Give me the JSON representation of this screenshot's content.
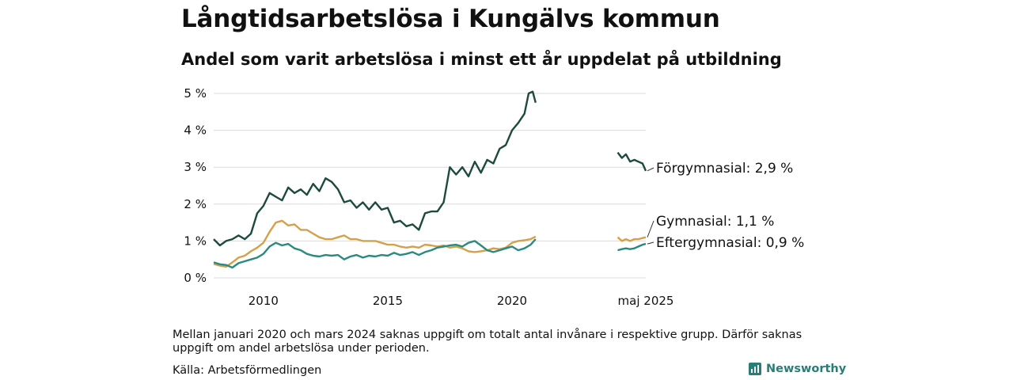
{
  "header": {
    "title": "Långtidsarbetslösa i Kungälvs kommun",
    "subtitle": "Andel som varit arbetslösa i minst ett år uppdelat på utbildning"
  },
  "footer": {
    "note": "Mellan januari 2020 och mars 2024 saknas uppgift om totalt antal invånare i respektive grupp. Därför saknas uppgift om andel arbetslösa under perioden.",
    "source": "Källa: Arbetsförmedlingen",
    "logo_text": "Newsworthy"
  },
  "chart_data": {
    "type": "line",
    "title": "Långtidsarbetslösa i Kungälvs kommun",
    "subtitle": "Andel som varit arbetslösa i minst ett år uppdelat på utbildning",
    "y_ticks": [
      0,
      1,
      2,
      3,
      4,
      5
    ],
    "y_tick_labels": [
      "0 %",
      "1 %",
      "2 %",
      "3 %",
      "4 %",
      "5 %"
    ],
    "ylim": [
      0,
      5
    ],
    "x_ticks": [
      2010,
      2015,
      2020
    ],
    "x_tick_labels": [
      "2010",
      "2015",
      "2020"
    ],
    "x_end_label": "maj 2025",
    "grid": "horizontal",
    "series": [
      {
        "name": "Förgymnasial",
        "end_label": "Förgymnasial: 2,9 %",
        "color": "#1d4a3f",
        "segments": [
          {
            "x": [
              2008.0,
              2008.25,
              2008.5,
              2008.75,
              2009.0,
              2009.25,
              2009.5,
              2009.75,
              2010.0,
              2010.25,
              2010.5,
              2010.75,
              2011.0,
              2011.25,
              2011.5,
              2011.75,
              2012.0,
              2012.25,
              2012.5,
              2012.75,
              2013.0,
              2013.25,
              2013.5,
              2013.75,
              2014.0,
              2014.25,
              2014.5,
              2014.75,
              2015.0,
              2015.25,
              2015.5,
              2015.75,
              2016.0,
              2016.25,
              2016.5,
              2016.75,
              2017.0,
              2017.25,
              2017.5,
              2017.75,
              2018.0,
              2018.25,
              2018.5,
              2018.75,
              2019.0,
              2019.25,
              2019.5,
              2019.75,
              2020.0,
              2020.25,
              2020.5,
              2020.67,
              2020.83,
              2020.95
            ],
            "y": [
              1.05,
              0.88,
              1.0,
              1.05,
              1.15,
              1.05,
              1.2,
              1.75,
              1.95,
              2.3,
              2.2,
              2.1,
              2.45,
              2.3,
              2.4,
              2.25,
              2.55,
              2.35,
              2.7,
              2.6,
              2.4,
              2.05,
              2.1,
              1.9,
              2.05,
              1.85,
              2.05,
              1.85,
              1.9,
              1.5,
              1.55,
              1.4,
              1.45,
              1.3,
              1.75,
              1.8,
              1.8,
              2.05,
              3.0,
              2.8,
              3.0,
              2.75,
              3.15,
              2.85,
              3.2,
              3.1,
              3.5,
              3.6,
              4.0,
              4.2,
              4.45,
              5.0,
              5.05,
              4.75
            ]
          },
          {
            "x": [
              2024.25,
              2024.42,
              2024.58,
              2024.75,
              2024.92,
              2025.08,
              2025.25,
              2025.38
            ],
            "y": [
              3.4,
              3.25,
              3.35,
              3.15,
              3.2,
              3.15,
              3.1,
              2.9
            ]
          }
        ]
      },
      {
        "name": "Gymnasial",
        "end_label": "Gymnasial: 1,1 %",
        "color": "#d4a04a",
        "segments": [
          {
            "x": [
              2008.0,
              2008.25,
              2008.5,
              2008.75,
              2009.0,
              2009.25,
              2009.5,
              2009.75,
              2010.0,
              2010.25,
              2010.5,
              2010.75,
              2011.0,
              2011.25,
              2011.5,
              2011.75,
              2012.0,
              2012.25,
              2012.5,
              2012.75,
              2013.0,
              2013.25,
              2013.5,
              2013.75,
              2014.0,
              2014.25,
              2014.5,
              2014.75,
              2015.0,
              2015.25,
              2015.5,
              2015.75,
              2016.0,
              2016.25,
              2016.5,
              2016.75,
              2017.0,
              2017.25,
              2017.5,
              2017.75,
              2018.0,
              2018.25,
              2018.5,
              2018.75,
              2019.0,
              2019.25,
              2019.5,
              2019.75,
              2020.0,
              2020.25,
              2020.5,
              2020.75,
              2020.95
            ],
            "y": [
              0.38,
              0.33,
              0.3,
              0.42,
              0.55,
              0.6,
              0.72,
              0.82,
              0.95,
              1.25,
              1.5,
              1.55,
              1.42,
              1.45,
              1.3,
              1.3,
              1.2,
              1.1,
              1.05,
              1.05,
              1.1,
              1.15,
              1.05,
              1.05,
              1.0,
              1.0,
              1.0,
              0.95,
              0.9,
              0.9,
              0.85,
              0.82,
              0.85,
              0.82,
              0.9,
              0.88,
              0.85,
              0.88,
              0.82,
              0.85,
              0.8,
              0.72,
              0.7,
              0.72,
              0.75,
              0.8,
              0.78,
              0.82,
              0.95,
              1.0,
              1.02,
              1.05,
              1.12
            ]
          },
          {
            "x": [
              2024.25,
              2024.42,
              2024.58,
              2024.75,
              2024.92,
              2025.08,
              2025.25,
              2025.38
            ],
            "y": [
              1.1,
              1.0,
              1.05,
              1.0,
              1.05,
              1.05,
              1.08,
              1.1
            ]
          }
        ]
      },
      {
        "name": "Eftergymnasial",
        "end_label": "Eftergymnasial: 0,9 %",
        "color": "#2a8a80",
        "segments": [
          {
            "x": [
              2008.0,
              2008.25,
              2008.5,
              2008.75,
              2009.0,
              2009.25,
              2009.5,
              2009.75,
              2010.0,
              2010.25,
              2010.5,
              2010.75,
              2011.0,
              2011.25,
              2011.5,
              2011.75,
              2012.0,
              2012.25,
              2012.5,
              2012.75,
              2013.0,
              2013.25,
              2013.5,
              2013.75,
              2014.0,
              2014.25,
              2014.5,
              2014.75,
              2015.0,
              2015.25,
              2015.5,
              2015.75,
              2016.0,
              2016.25,
              2016.5,
              2016.75,
              2017.0,
              2017.25,
              2017.5,
              2017.75,
              2018.0,
              2018.25,
              2018.5,
              2018.75,
              2019.0,
              2019.25,
              2019.5,
              2019.75,
              2020.0,
              2020.25,
              2020.5,
              2020.75,
              2020.95
            ],
            "y": [
              0.42,
              0.37,
              0.35,
              0.28,
              0.4,
              0.45,
              0.5,
              0.55,
              0.65,
              0.85,
              0.95,
              0.88,
              0.92,
              0.8,
              0.75,
              0.65,
              0.6,
              0.58,
              0.62,
              0.6,
              0.62,
              0.5,
              0.58,
              0.62,
              0.55,
              0.6,
              0.58,
              0.62,
              0.6,
              0.68,
              0.62,
              0.65,
              0.7,
              0.62,
              0.7,
              0.75,
              0.82,
              0.85,
              0.88,
              0.9,
              0.85,
              0.95,
              1.0,
              0.88,
              0.75,
              0.7,
              0.75,
              0.8,
              0.85,
              0.75,
              0.8,
              0.9,
              1.05
            ]
          },
          {
            "x": [
              2024.25,
              2024.42,
              2024.58,
              2024.75,
              2024.92,
              2025.08,
              2025.25,
              2025.38
            ],
            "y": [
              0.75,
              0.78,
              0.8,
              0.78,
              0.8,
              0.85,
              0.9,
              0.92
            ]
          }
        ]
      }
    ]
  }
}
